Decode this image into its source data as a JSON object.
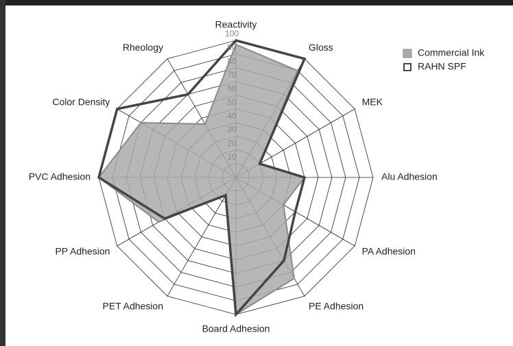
{
  "chart_data": {
    "type": "radar",
    "categories": [
      "Reactivity",
      "Gloss",
      "MEK",
      "Alu Adhesion",
      "PA Adhesion",
      "PE Adhesion",
      "Board Adhesion",
      "PET Adhesion",
      "PP Adhesion",
      "PVC Adhesion",
      "Color Density",
      "Rheology"
    ],
    "series": [
      {
        "name": "Commercial Ink",
        "color": "#aaaaaa",
        "values": [
          97,
          90,
          20,
          50,
          40,
          85,
          100,
          15,
          65,
          100,
          80,
          45
        ]
      },
      {
        "name": "RAHN SPF",
        "color": "#444444",
        "values": [
          100,
          100,
          20,
          50,
          50,
          70,
          100,
          15,
          60,
          100,
          100,
          70
        ]
      }
    ],
    "rlim": [
      0,
      100
    ],
    "rticks": [
      10,
      20,
      30,
      40,
      50,
      60,
      70,
      80,
      90,
      100
    ],
    "grid": true,
    "legend": "top-right"
  }
}
